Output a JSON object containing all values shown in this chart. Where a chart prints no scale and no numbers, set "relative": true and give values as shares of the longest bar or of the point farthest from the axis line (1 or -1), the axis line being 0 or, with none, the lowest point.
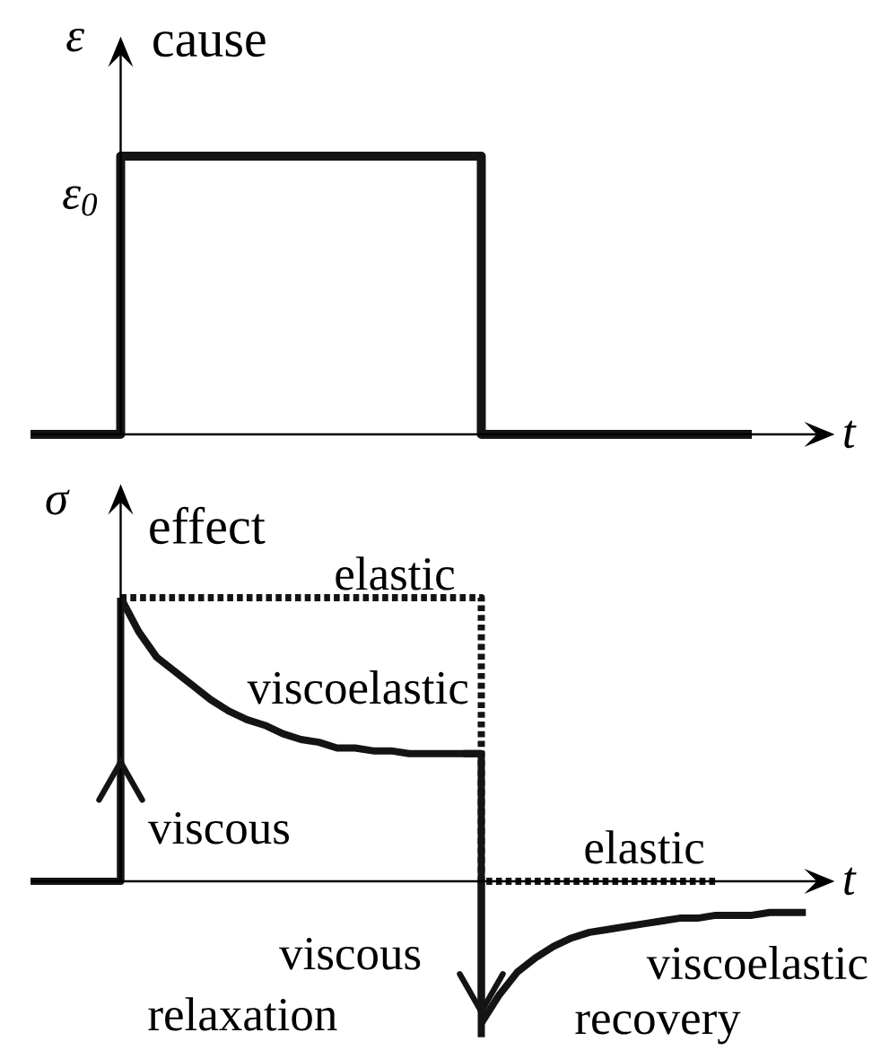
{
  "chart_data": [
    {
      "type": "step",
      "title": "cause",
      "xlabel": "t",
      "ylabel": "ε",
      "relative": true,
      "color": "#141414",
      "categories": [
        null,
        null,
        null,
        null,
        null,
        null,
        null,
        null,
        null,
        null,
        null,
        null,
        null,
        null,
        null,
        null,
        null,
        null,
        null,
        null,
        null,
        null,
        null,
        null,
        null,
        null,
        null,
        null,
        null,
        null,
        null,
        null,
        null,
        null,
        null,
        null,
        null,
        null,
        null,
        null,
        null,
        null,
        null,
        null,
        null
      ],
      "values": [
        0,
        0,
        0,
        0,
        0,
        1,
        1,
        1,
        1,
        1,
        1,
        1,
        1,
        1,
        1,
        1,
        1,
        1,
        1,
        1,
        1,
        1,
        1,
        1,
        1,
        0,
        0,
        0,
        0,
        0,
        0,
        0,
        0,
        0,
        0,
        0,
        0,
        0,
        0,
        0,
        0,
        null,
        null,
        null,
        null
      ],
      "annotations": [
        "ε$_{0}$"
      ]
    },
    {
      "type": "line",
      "title": "effect",
      "xlabel": "t",
      "ylabel": "σ",
      "relative": true,
      "categories": [
        null,
        null,
        null,
        null,
        null,
        null,
        null,
        null,
        null,
        null,
        null,
        null,
        null,
        null,
        null,
        null,
        null,
        null,
        null,
        null,
        null,
        null,
        null,
        null,
        null,
        null,
        null,
        null,
        null,
        null,
        null,
        null,
        null,
        null,
        null,
        null,
        null,
        null,
        null,
        null,
        null,
        null,
        null,
        null,
        null
      ],
      "series": [
        {
          "name": "elastic",
          "type": "step",
          "color": "#141414",
          "line_style": "dotted",
          "values": [
            null,
            null,
            null,
            null,
            null,
            1,
            1,
            1,
            1,
            1,
            1,
            1,
            1,
            1,
            1,
            1,
            1,
            1,
            1,
            1,
            1,
            1,
            1,
            1,
            1,
            0,
            0,
            0,
            0,
            0,
            0,
            0,
            0,
            0,
            0,
            0,
            0,
            0,
            0,
            null,
            null,
            null,
            null,
            null,
            null
          ]
        },
        {
          "name": "viscoelastic",
          "type": "line",
          "color": "#141414",
          "values": [
            null,
            null,
            null,
            null,
            null,
            1,
            0.88,
            0.79,
            0.74,
            0.69,
            0.64,
            0.6,
            0.57,
            0.55,
            0.52,
            0.5,
            0.49,
            0.47,
            0.47,
            0.46,
            0.46,
            0.45,
            0.45,
            0.45,
            0.45,
            0.45,
            null,
            null,
            null,
            null,
            null,
            null,
            null,
            null,
            null,
            null,
            null,
            null,
            null,
            null,
            null,
            null,
            null,
            null,
            null
          ]
        },
        {
          "type": "step",
          "color": "#141414",
          "values": [
            0,
            0,
            0,
            0,
            0,
            1,
            null,
            null,
            null,
            null,
            null,
            null,
            null,
            null,
            null,
            null,
            null,
            null,
            null,
            null,
            null,
            null,
            null,
            null,
            0.45,
            -0.55,
            null,
            null,
            null,
            null,
            null,
            null,
            null,
            null,
            null,
            null,
            null,
            null,
            null,
            null,
            null,
            null,
            null,
            null,
            null
          ]
        },
        {
          "name": "viscous",
          "type": "bar",
          "color": "#141414",
          "values": [
            null,
            null,
            null,
            null,
            null,
            0.42,
            null,
            null,
            null,
            null,
            null,
            null,
            null,
            null,
            null,
            null,
            null,
            null,
            null,
            null,
            null,
            null,
            null,
            null,
            null,
            null,
            null,
            null,
            null,
            null,
            null,
            null,
            null,
            null,
            null,
            null,
            null,
            null,
            null,
            null,
            null,
            null,
            null,
            null,
            null
          ]
        },
        {
          "name": "viscous",
          "type": "bar",
          "color": "#141414",
          "values": [
            null,
            null,
            null,
            null,
            null,
            null,
            null,
            null,
            null,
            null,
            null,
            null,
            null,
            null,
            null,
            null,
            null,
            null,
            null,
            null,
            null,
            null,
            null,
            null,
            null,
            -0.46,
            null,
            null,
            null,
            null,
            null,
            null,
            null,
            null,
            null,
            null,
            null,
            null,
            null,
            null,
            null,
            null,
            null,
            null,
            null
          ]
        },
        {
          "name": "viscoelastic",
          "type": "line",
          "color": "#141414",
          "values": [
            null,
            null,
            null,
            null,
            null,
            null,
            null,
            null,
            null,
            null,
            null,
            null,
            null,
            null,
            null,
            null,
            null,
            null,
            null,
            null,
            null,
            null,
            null,
            null,
            null,
            -0.5,
            -0.4,
            -0.32,
            -0.27,
            -0.23,
            -0.2,
            -0.18,
            -0.17,
            -0.16,
            -0.15,
            -0.14,
            -0.13,
            -0.13,
            -0.12,
            -0.12,
            -0.12,
            -0.11,
            -0.11,
            -0.11,
            null
          ]
        }
      ],
      "annotations": [
        "elastic",
        "relaxation",
        "recovery"
      ]
    }
  ]
}
